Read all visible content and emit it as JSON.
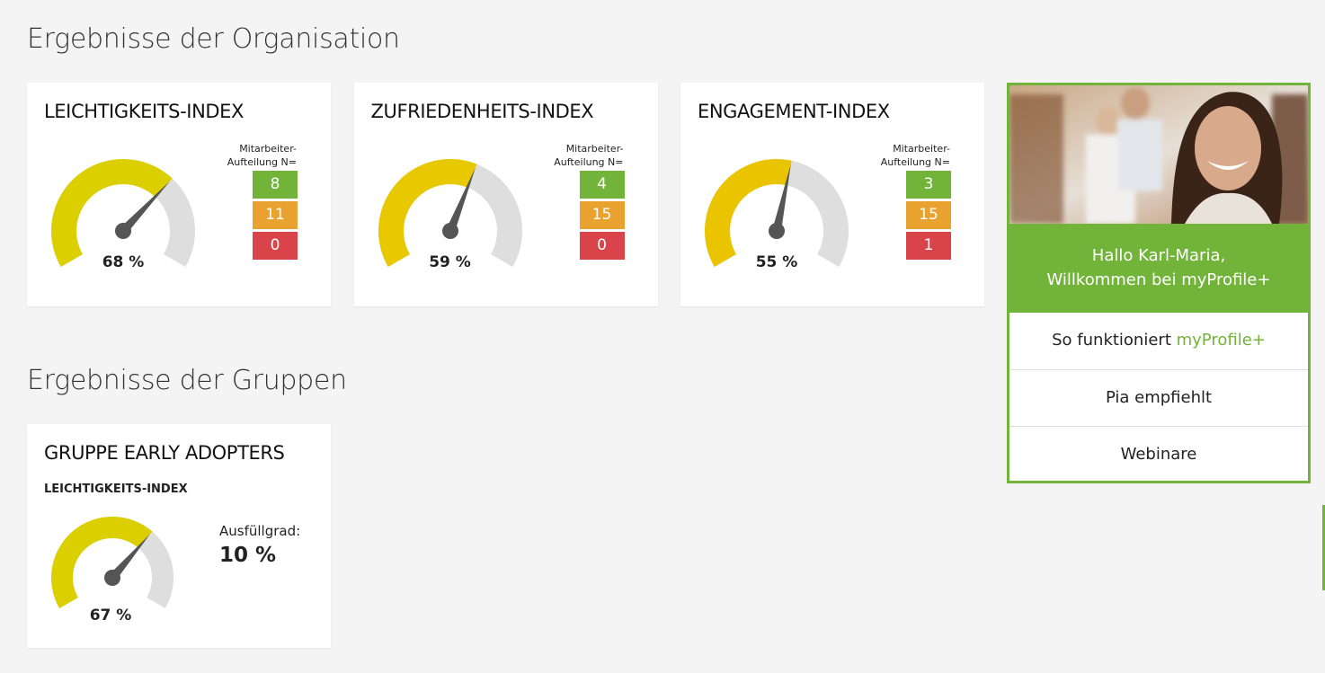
{
  "header": {
    "org_title": "Ergebnisse der Organisation",
    "group_title": "Ergebnisse der Gruppen"
  },
  "org_cards": [
    {
      "title": "LEICHTIGKEITS-INDEX",
      "value": 68,
      "value_label": "68 %",
      "color": "#dccf00",
      "caption": [
        "Mitarbeiter-",
        "Aufteilung N="
      ],
      "counts": [
        "8",
        "11",
        "0"
      ]
    },
    {
      "title": "ZUFRIEDENHEITS-INDEX",
      "value": 59,
      "value_label": "59 %",
      "color": "#e8c800",
      "caption": [
        "Mitarbeiter-",
        "Aufteilung N="
      ],
      "counts": [
        "4",
        "15",
        "0"
      ]
    },
    {
      "title": "ENGAGEMENT-INDEX",
      "value": 55,
      "value_label": "55 %",
      "color": "#ebc400",
      "caption": [
        "Mitarbeiter-",
        "Aufteilung N="
      ],
      "counts": [
        "3",
        "15",
        "1"
      ]
    }
  ],
  "group_cards": [
    {
      "title": "GRUPPE EARLY ADOPTERS",
      "subtitle": "LEICHTIGKEITS-INDEX",
      "value": 67,
      "value_label": "67 %",
      "color": "#dccf00",
      "fill_label": "Ausfüllgrad:",
      "fill_value": "10 %"
    }
  ],
  "panel": {
    "greeting": [
      "Hallo Karl-Maria,",
      "Willkommen bei myProfile+"
    ],
    "links": [
      {
        "text": "So funktioniert ",
        "highlight": "myProfile+"
      },
      {
        "text": "Pia empfiehlt"
      },
      {
        "text": "Webinare"
      }
    ]
  }
}
